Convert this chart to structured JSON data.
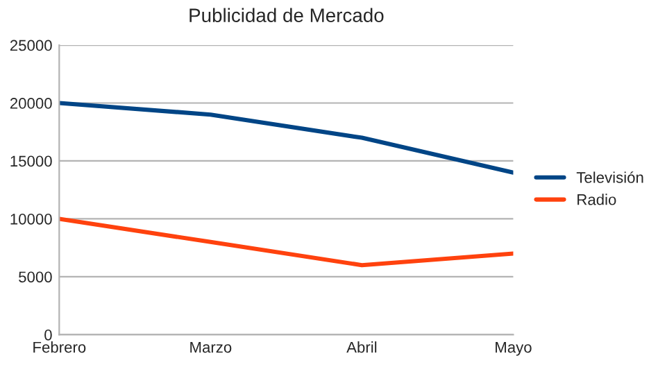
{
  "chart_data": {
    "type": "line",
    "title": "Publicidad de Mercado",
    "categories": [
      "Febrero",
      "Marzo",
      "Abril",
      "Mayo"
    ],
    "series": [
      {
        "name": "Televisión",
        "color": "#004586",
        "values": [
          20000,
          19000,
          17000,
          14000
        ]
      },
      {
        "name": "Radio",
        "color": "#ff420e",
        "values": [
          10000,
          8000,
          6000,
          7000
        ]
      }
    ],
    "ylim": [
      0,
      25000
    ],
    "yticks": [
      0,
      5000,
      10000,
      15000,
      20000,
      25000
    ],
    "grid": "y",
    "legend": "right",
    "marker": "none",
    "line_style": "solid"
  }
}
